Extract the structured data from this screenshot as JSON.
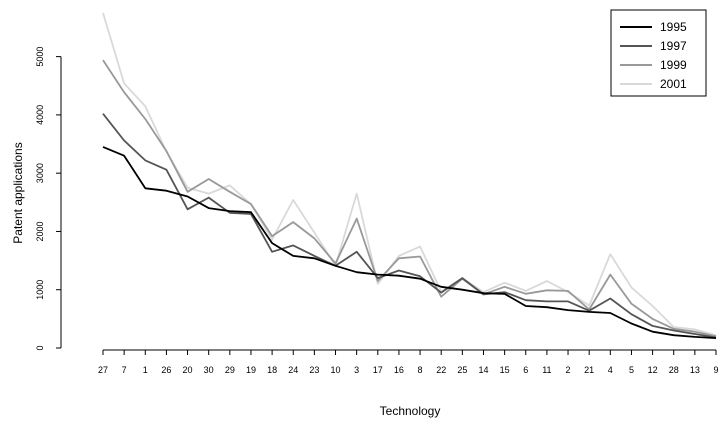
{
  "chart_data": {
    "type": "line",
    "xlabel": "Technology",
    "ylabel": "Patent applications",
    "ylim": [
      0,
      5800
    ],
    "yticks": [
      0,
      1000,
      2000,
      3000,
      4000,
      5000
    ],
    "categories": [
      "27",
      "7",
      "1",
      "26",
      "20",
      "30",
      "29",
      "19",
      "18",
      "24",
      "23",
      "10",
      "3",
      "17",
      "16",
      "8",
      "22",
      "25",
      "14",
      "15",
      "6",
      "11",
      "2",
      "21",
      "4",
      "5",
      "12",
      "28",
      "13",
      "9"
    ],
    "legend_position": "top-right",
    "grid": false,
    "series": [
      {
        "name": "1995",
        "color": "#000000",
        "values": [
          3450,
          3300,
          2740,
          2700,
          2600,
          2400,
          2350,
          2330,
          1800,
          1580,
          1540,
          1410,
          1300,
          1260,
          1240,
          1190,
          1050,
          1000,
          940,
          930,
          720,
          700,
          650,
          620,
          600,
          420,
          280,
          220,
          190,
          170
        ]
      },
      {
        "name": "1997",
        "color": "#555555",
        "values": [
          4020,
          3560,
          3220,
          3060,
          2380,
          2580,
          2320,
          2300,
          1650,
          1760,
          1580,
          1410,
          1650,
          1200,
          1330,
          1230,
          950,
          1200,
          920,
          960,
          820,
          800,
          800,
          640,
          850,
          580,
          380,
          300,
          240,
          180
        ]
      },
      {
        "name": "1999",
        "color": "#999999",
        "values": [
          4940,
          4390,
          3930,
          3380,
          2680,
          2900,
          2680,
          2470,
          1920,
          2160,
          1880,
          1450,
          2220,
          1150,
          1540,
          1570,
          880,
          1190,
          920,
          1050,
          930,
          990,
          980,
          660,
          1260,
          760,
          500,
          330,
          280,
          200
        ]
      },
      {
        "name": "2001",
        "color": "#d9d9d9",
        "values": [
          5750,
          4540,
          4150,
          3370,
          2750,
          2650,
          2790,
          2470,
          1860,
          2540,
          1980,
          1410,
          2650,
          1100,
          1580,
          1740,
          970,
          1200,
          960,
          1120,
          980,
          1150,
          960,
          730,
          1610,
          1040,
          720,
          360,
          320,
          220
        ]
      }
    ]
  }
}
